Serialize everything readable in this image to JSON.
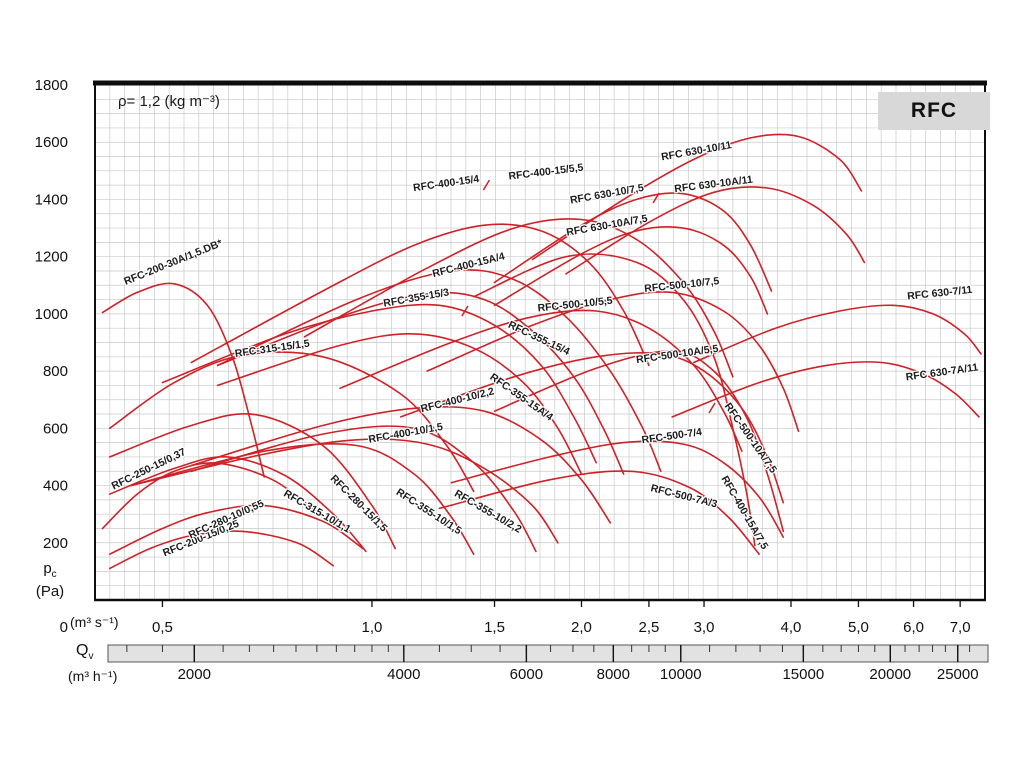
{
  "header": {
    "density_label": "ρ= 1,2 (kg m⁻³)",
    "series_badge": "RFC"
  },
  "chart_data": {
    "type": "line",
    "title": "RFC fan performance curves, static pressure vs volume flow",
    "grid": true,
    "curve_color": "#cf2127",
    "x_axis": {
      "scale": "log",
      "unit_si": "(m³ s⁻¹)",
      "min": 0.4,
      "max": 7.6,
      "ticks": [
        {
          "v": 0.5,
          "label": "0,5"
        },
        {
          "v": 1.0,
          "label": "1,0"
        },
        {
          "v": 1.5,
          "label": "1,5"
        },
        {
          "v": 2.0,
          "label": "2,0"
        },
        {
          "v": 2.5,
          "label": "2,5"
        },
        {
          "v": 3.0,
          "label": "3,0"
        },
        {
          "v": 4.0,
          "label": "4,0"
        },
        {
          "v": 5.0,
          "label": "5,0"
        },
        {
          "v": 6.0,
          "label": "6,0"
        },
        {
          "v": 7.0,
          "label": "7,0"
        }
      ]
    },
    "flow_hour_axis": {
      "name_main": "Q",
      "name_sub": "v",
      "unit": "(m³ h⁻¹)",
      "major_ticks": [
        2000,
        4000,
        6000,
        8000,
        10000,
        15000,
        20000,
        25000
      ]
    },
    "y_axis": {
      "name_main": "p",
      "name_sub": "c",
      "unit": "(Pa)",
      "min": 0,
      "max": 1800,
      "tick_step": 200,
      "zero_label": "0"
    },
    "cross_ticks": [
      [
        1.46,
        1450
      ],
      [
        2.56,
        1405
      ],
      [
        1.36,
        1010
      ],
      [
        3.08,
        671
      ]
    ],
    "curves": [
      {
        "name": "RFC-200-15/0,25",
        "points": [
          [
            0.42,
            110
          ],
          [
            0.48,
            180
          ],
          [
            0.55,
            225
          ],
          [
            0.65,
            240
          ],
          [
            0.78,
            200
          ],
          [
            0.88,
            120
          ]
        ],
        "label": {
          "q": 0.57,
          "p": 205,
          "angle": -22
        }
      },
      {
        "name": "RFC-280-10/0,55",
        "points": [
          [
            0.42,
            160
          ],
          [
            0.5,
            250
          ],
          [
            0.58,
            305
          ],
          [
            0.7,
            330
          ],
          [
            0.85,
            275
          ],
          [
            0.97,
            180
          ]
        ],
        "label": {
          "q": 0.62,
          "p": 272,
          "angle": -24
        }
      },
      {
        "name": "RFC-250-15/0,37",
        "points": [
          [
            0.41,
            250
          ],
          [
            0.46,
            370
          ],
          [
            0.52,
            450
          ],
          [
            0.6,
            478
          ],
          [
            0.72,
            420
          ],
          [
            0.84,
            300
          ]
        ],
        "label": {
          "q": 0.48,
          "p": 448,
          "angle": -26
        }
      },
      {
        "name": "RFC-200-30A/1,5.DB*",
        "points": [
          [
            0.41,
            1005
          ],
          [
            0.46,
            1075
          ],
          [
            0.52,
            1105
          ],
          [
            0.58,
            1030
          ],
          [
            0.63,
            850
          ],
          [
            0.67,
            620
          ],
          [
            0.7,
            430
          ]
        ],
        "label": {
          "q": 0.52,
          "p": 1170,
          "angle": -22
        }
      },
      {
        "name": "RFC-315-15/1,5",
        "points": [
          [
            0.42,
            600
          ],
          [
            0.52,
            760
          ],
          [
            0.65,
            855
          ],
          [
            0.85,
            850
          ],
          [
            1.1,
            720
          ],
          [
            1.28,
            540
          ],
          [
            1.4,
            380
          ]
        ],
        "label": {
          "q": 0.72,
          "p": 868,
          "angle": -8
        }
      },
      {
        "name": "RFC-315-10/1,1",
        "points": [
          [
            0.42,
            370
          ],
          [
            0.52,
            460
          ],
          [
            0.62,
            500
          ],
          [
            0.75,
            435
          ],
          [
            0.88,
            300
          ],
          [
            0.98,
            170
          ]
        ],
        "label": {
          "q": 0.83,
          "p": 300,
          "angle": 30
        }
      },
      {
        "name": "RFC-280-15/1,5",
        "points": [
          [
            0.42,
            500
          ],
          [
            0.55,
            610
          ],
          [
            0.68,
            648
          ],
          [
            0.85,
            540
          ],
          [
            1.0,
            330
          ],
          [
            1.08,
            180
          ]
        ],
        "label": {
          "q": 0.95,
          "p": 330,
          "angle": 45
        }
      },
      {
        "name": "RFC-355-10/1,5",
        "points": [
          [
            0.45,
            400
          ],
          [
            0.7,
            520
          ],
          [
            0.95,
            540
          ],
          [
            1.15,
            440
          ],
          [
            1.3,
            290
          ],
          [
            1.4,
            160
          ]
        ],
        "label": {
          "q": 1.2,
          "p": 300,
          "angle": 33
        }
      },
      {
        "name": "RFC-355-10/2,2",
        "points": [
          [
            0.55,
            450
          ],
          [
            0.85,
            580
          ],
          [
            1.15,
            600
          ],
          [
            1.4,
            480
          ],
          [
            1.6,
            310
          ],
          [
            1.72,
            170
          ]
        ],
        "label": {
          "q": 1.46,
          "p": 300,
          "angle": 30
        }
      },
      {
        "name": "RFC-400-10/1,5",
        "points": [
          [
            0.45,
            400
          ],
          [
            0.7,
            510
          ],
          [
            0.95,
            560
          ],
          [
            1.2,
            545
          ],
          [
            1.45,
            460
          ],
          [
            1.7,
            330
          ],
          [
            1.85,
            200
          ]
        ],
        "label": {
          "q": 1.12,
          "p": 572,
          "angle": -10
        }
      },
      {
        "name": "RFC-400-10/2,2",
        "points": [
          [
            0.55,
            470
          ],
          [
            0.85,
            610
          ],
          [
            1.15,
            670
          ],
          [
            1.45,
            660
          ],
          [
            1.75,
            560
          ],
          [
            2.0,
            420
          ],
          [
            2.2,
            270
          ]
        ],
        "label": {
          "q": 1.33,
          "p": 688,
          "angle": -14
        }
      },
      {
        "name": "RFC-355-15/3",
        "points": [
          [
            0.5,
            760
          ],
          [
            0.75,
            930
          ],
          [
            1.0,
            1010
          ],
          [
            1.25,
            1030
          ],
          [
            1.5,
            960
          ],
          [
            1.75,
            820
          ],
          [
            1.95,
            640
          ],
          [
            2.1,
            480
          ]
        ],
        "label": {
          "q": 1.16,
          "p": 1045,
          "angle": -10
        }
      },
      {
        "name": "RFC-355-15/4",
        "points": [
          [
            0.6,
            820
          ],
          [
            0.9,
            990
          ],
          [
            1.2,
            1070
          ],
          [
            1.45,
            1050
          ],
          [
            1.7,
            940
          ],
          [
            1.95,
            780
          ],
          [
            2.15,
            600
          ],
          [
            2.3,
            440
          ]
        ],
        "label": {
          "q": 1.73,
          "p": 905,
          "angle": 25
        }
      },
      {
        "name": "RFC-355-15A/4",
        "points": [
          [
            0.6,
            750
          ],
          [
            0.9,
            890
          ],
          [
            1.15,
            930
          ],
          [
            1.4,
            880
          ],
          [
            1.65,
            760
          ],
          [
            1.85,
            600
          ],
          [
            2.0,
            440
          ]
        ],
        "label": {
          "q": 1.63,
          "p": 700,
          "angle": 35
        }
      },
      {
        "name": "RFC-400-15/4",
        "points": [
          [
            0.55,
            830
          ],
          [
            0.85,
            1080
          ],
          [
            1.15,
            1240
          ],
          [
            1.45,
            1310
          ],
          [
            1.75,
            1290
          ],
          [
            2.05,
            1180
          ],
          [
            2.3,
            1010
          ],
          [
            2.5,
            820
          ]
        ],
        "label": {
          "q": 1.28,
          "p": 1445,
          "angle": -8
        }
      },
      {
        "name": "RFC-400-15/5,5",
        "points": [
          [
            0.8,
            920
          ],
          [
            1.2,
            1160
          ],
          [
            1.6,
            1300
          ],
          [
            2.0,
            1330
          ],
          [
            2.4,
            1260
          ],
          [
            2.8,
            1110
          ],
          [
            3.1,
            940
          ],
          [
            3.3,
            780
          ]
        ],
        "label": {
          "q": 1.78,
          "p": 1485,
          "angle": -7
        }
      },
      {
        "name": "RFC-400-15A/4",
        "points": [
          [
            0.6,
            820
          ],
          [
            0.95,
            1050
          ],
          [
            1.3,
            1150
          ],
          [
            1.6,
            1120
          ],
          [
            1.9,
            990
          ],
          [
            2.2,
            800
          ],
          [
            2.45,
            600
          ],
          [
            2.6,
            450
          ]
        ],
        "label": {
          "q": 1.38,
          "p": 1160,
          "angle": -14
        }
      },
      {
        "name": "RFC-400-15A/7,5",
        "points": [
          [
            1.4,
            1060
          ],
          [
            1.9,
            1200
          ],
          [
            2.4,
            1180
          ],
          [
            2.8,
            1050
          ],
          [
            3.1,
            850
          ],
          [
            3.3,
            600
          ],
          [
            3.45,
            380
          ],
          [
            3.55,
            190
          ]
        ],
        "label": {
          "q": 3.4,
          "p": 300,
          "angle": 60
        }
      },
      {
        "name": "RFC-500-10/5,5",
        "points": [
          [
            0.9,
            740
          ],
          [
            1.3,
            900
          ],
          [
            1.7,
            990
          ],
          [
            2.1,
            1010
          ],
          [
            2.5,
            950
          ],
          [
            2.9,
            820
          ],
          [
            3.2,
            660
          ],
          [
            3.4,
            520
          ]
        ],
        "label": {
          "q": 1.96,
          "p": 1022,
          "angle": -6
        }
      },
      {
        "name": "RFC-500-10/7,5",
        "points": [
          [
            1.2,
            800
          ],
          [
            1.7,
            960
          ],
          [
            2.2,
            1050
          ],
          [
            2.7,
            1075
          ],
          [
            3.2,
            1010
          ],
          [
            3.6,
            890
          ],
          [
            3.9,
            740
          ],
          [
            4.1,
            590
          ]
        ],
        "label": {
          "q": 2.79,
          "p": 1090,
          "angle": -6
        }
      },
      {
        "name": "RFC-500-10A/5,5",
        "points": [
          [
            1.1,
            640
          ],
          [
            1.6,
            780
          ],
          [
            2.1,
            850
          ],
          [
            2.6,
            860
          ],
          [
            3.0,
            800
          ],
          [
            3.4,
            670
          ],
          [
            3.7,
            500
          ],
          [
            3.9,
            340
          ]
        ],
        "label": {
          "q": 2.75,
          "p": 848,
          "angle": -8
        }
      },
      {
        "name": "RFC-500-10A/7,5",
        "points": [
          [
            1.5,
            660
          ],
          [
            2.1,
            810
          ],
          [
            2.7,
            870
          ],
          [
            3.1,
            800
          ],
          [
            3.45,
            640
          ],
          [
            3.7,
            440
          ],
          [
            3.9,
            240
          ]
        ],
        "label": {
          "q": 3.47,
          "p": 560,
          "angle": 55
        }
      },
      {
        "name": "RFC-500-7/4",
        "points": [
          [
            1.3,
            410
          ],
          [
            1.8,
            500
          ],
          [
            2.3,
            550
          ],
          [
            2.8,
            545
          ],
          [
            3.2,
            480
          ],
          [
            3.6,
            360
          ],
          [
            3.9,
            220
          ]
        ],
        "label": {
          "q": 2.7,
          "p": 562,
          "angle": -8
        }
      },
      {
        "name": "RFC-500-7A/3",
        "points": [
          [
            1.25,
            320
          ],
          [
            1.8,
            420
          ],
          [
            2.35,
            450
          ],
          [
            2.85,
            395
          ],
          [
            3.25,
            290
          ],
          [
            3.6,
            160
          ]
        ],
        "label": {
          "q": 2.8,
          "p": 352,
          "angle": 14
        }
      },
      {
        "name": "RFC 630-10/7,5",
        "points": [
          [
            1.5,
            1110
          ],
          [
            2.0,
            1310
          ],
          [
            2.4,
            1400
          ],
          [
            2.8,
            1420
          ],
          [
            3.2,
            1360
          ],
          [
            3.5,
            1240
          ],
          [
            3.75,
            1080
          ]
        ],
        "label": {
          "q": 2.18,
          "p": 1408,
          "angle": -10
        }
      },
      {
        "name": "RFC 630-10/11",
        "points": [
          [
            1.7,
            1190
          ],
          [
            2.3,
            1400
          ],
          [
            2.9,
            1540
          ],
          [
            3.5,
            1615
          ],
          [
            4.1,
            1620
          ],
          [
            4.7,
            1540
          ],
          [
            5.05,
            1430
          ]
        ],
        "label": {
          "q": 2.93,
          "p": 1558,
          "angle": -10
        }
      },
      {
        "name": "RFC 630-10A/7,5",
        "points": [
          [
            1.5,
            1030
          ],
          [
            2.0,
            1210
          ],
          [
            2.4,
            1290
          ],
          [
            2.8,
            1300
          ],
          [
            3.2,
            1240
          ],
          [
            3.5,
            1130
          ],
          [
            3.7,
            1000
          ]
        ],
        "label": {
          "q": 2.18,
          "p": 1298,
          "angle": -10
        }
      },
      {
        "name": "RFC 630-10A/11",
        "points": [
          [
            1.9,
            1140
          ],
          [
            2.5,
            1320
          ],
          [
            3.1,
            1425
          ],
          [
            3.7,
            1440
          ],
          [
            4.3,
            1380
          ],
          [
            4.8,
            1280
          ],
          [
            5.1,
            1180
          ]
        ],
        "label": {
          "q": 3.1,
          "p": 1442,
          "angle": -7
        }
      },
      {
        "name": "RFC 630-7/11",
        "points": [
          [
            2.9,
            830
          ],
          [
            3.8,
            950
          ],
          [
            4.7,
            1010
          ],
          [
            5.6,
            1030
          ],
          [
            6.4,
            1000
          ],
          [
            7.1,
            930
          ],
          [
            7.5,
            860
          ]
        ],
        "label": {
          "q": 6.55,
          "p": 1062,
          "angle": -6
        }
      },
      {
        "name": "RFC 630-7A/11",
        "points": [
          [
            2.7,
            640
          ],
          [
            3.6,
            760
          ],
          [
            4.5,
            820
          ],
          [
            5.4,
            830
          ],
          [
            6.2,
            790
          ],
          [
            6.9,
            720
          ],
          [
            7.45,
            640
          ]
        ],
        "label": {
          "q": 6.6,
          "p": 785,
          "angle": -8
        }
      }
    ]
  }
}
